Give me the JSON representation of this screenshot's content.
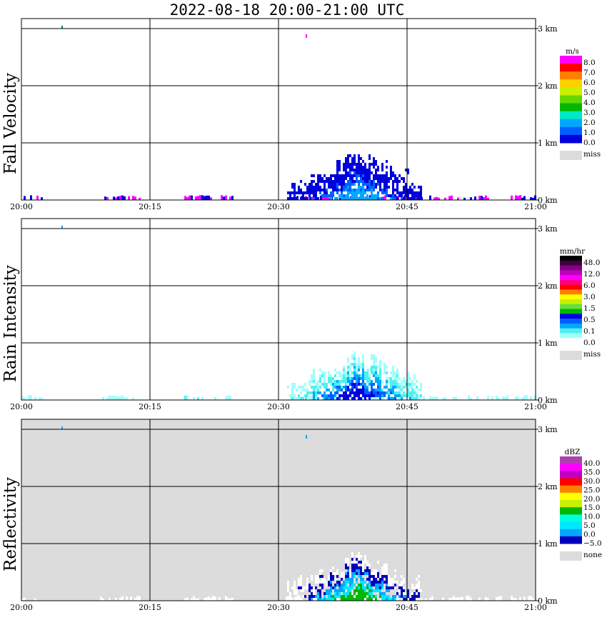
{
  "title": "2022-08-18   20:00-21:00 UTC",
  "x_ticks": [
    "20:00",
    "20:15",
    "20:30",
    "20:45",
    "21:00"
  ],
  "y_ticks": [
    "0 km",
    "1 km",
    "2 km",
    "3 km"
  ],
  "chart_data": [
    {
      "type": "heatmap",
      "title": "Fall Velocity",
      "xlim": [
        "20:00",
        "21:00"
      ],
      "ylim_km": [
        0,
        3.2
      ],
      "legend": {
        "unit": "m/s",
        "colors": [
          "#0000dd",
          "#0060ff",
          "#00a8ff",
          "#00e8c8",
          "#00b800",
          "#64d800",
          "#c8f000",
          "#ffd000",
          "#ff8000",
          "#ff0000",
          "#ff00ff"
        ],
        "labels": [
          "0.0",
          "1.0",
          "2.0",
          "3.0",
          "4.0",
          "5.0",
          "6.0",
          "7.0",
          "8.0"
        ],
        "miss_label": "miss",
        "miss_color": "#dcdcdc"
      },
      "background": "#ffffff"
    },
    {
      "type": "heatmap",
      "title": "Rain Intensity",
      "xlim": [
        "20:00",
        "21:00"
      ],
      "ylim_km": [
        0,
        3.2
      ],
      "legend": {
        "unit": "mm/hr",
        "colors": [
          "#ffffff",
          "#a0fffa",
          "#50f0f0",
          "#00a8ff",
          "#0060ff",
          "#0000dd",
          "#00b800",
          "#64e040",
          "#c8f000",
          "#ffff00",
          "#ff8000",
          "#ff0000",
          "#ff0080",
          "#ff00ff",
          "#c000c0",
          "#800080",
          "#400040",
          "#000000"
        ],
        "labels": [
          "0.0",
          "0.1",
          "0.5",
          "1.5",
          "3.0",
          "6.0",
          "12.0",
          "48.0"
        ],
        "miss_label": "miss",
        "miss_color": "#dcdcdc"
      },
      "background": "#ffffff"
    },
    {
      "type": "heatmap",
      "title": "Reflectivity",
      "xlim": [
        "20:00",
        "21:00"
      ],
      "ylim_km": [
        0,
        3.2
      ],
      "legend": {
        "unit": "dBZ",
        "colors": [
          "#0000bb",
          "#00a8ff",
          "#00e8ff",
          "#00ffe0",
          "#00b800",
          "#c8f000",
          "#ffff00",
          "#ff8000",
          "#ff0000",
          "#c000c0",
          "#ff00ff",
          "#b040b0"
        ],
        "labels": [
          "−5.0",
          "0.0",
          "5.0",
          "10.0",
          "15.0",
          "20.0",
          "25.0",
          "30.0",
          "35.0",
          "40.0"
        ],
        "miss_label": "none",
        "miss_color": "#dcdcdc"
      },
      "background": "#dcdcdc"
    }
  ]
}
